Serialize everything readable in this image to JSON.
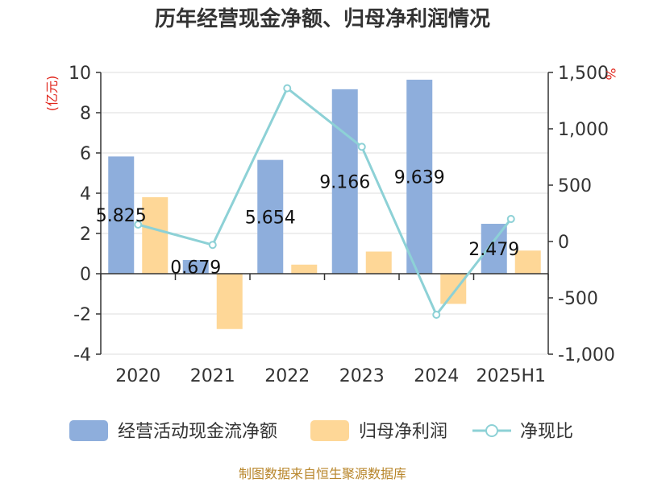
{
  "title": "历年经营现金净额、归母净利润情况",
  "source": "制图数据来自恒生聚源数据库",
  "chart_data": {
    "type": "bar",
    "categories": [
      "2020",
      "2021",
      "2022",
      "2023",
      "2024",
      "2025H1"
    ],
    "y_left": {
      "unit": "(亿元)",
      "ticks": [
        "10",
        "8",
        "6",
        "4",
        "2",
        "0",
        "-2",
        "-4"
      ],
      "ylim": [
        -4,
        10
      ]
    },
    "y_right": {
      "unit": "%",
      "ticks": [
        "1,500",
        "1,000",
        "500",
        "0",
        "-500",
        "-1,000"
      ],
      "ylim": [
        -1000,
        1500
      ]
    },
    "series": [
      {
        "name": "经营活动现金流净额",
        "type": "bar",
        "axis": "left",
        "color": "#8eaedc",
        "values": [
          5.825,
          0.679,
          5.654,
          9.166,
          9.639,
          2.479
        ],
        "labels": [
          "5.825",
          "0.679",
          "5.654",
          "9.166",
          "9.639",
          "2.479"
        ]
      },
      {
        "name": "归母净利润",
        "type": "bar",
        "axis": "left",
        "color": "#fed797",
        "values": [
          3.8,
          -2.75,
          0.45,
          1.1,
          -1.5,
          1.15
        ]
      },
      {
        "name": "净现比",
        "type": "line",
        "axis": "right",
        "color": "#8dd1d6",
        "values": [
          150,
          -30,
          1360,
          840,
          -650,
          200
        ]
      }
    ],
    "grid": true,
    "legend": "bottom"
  }
}
